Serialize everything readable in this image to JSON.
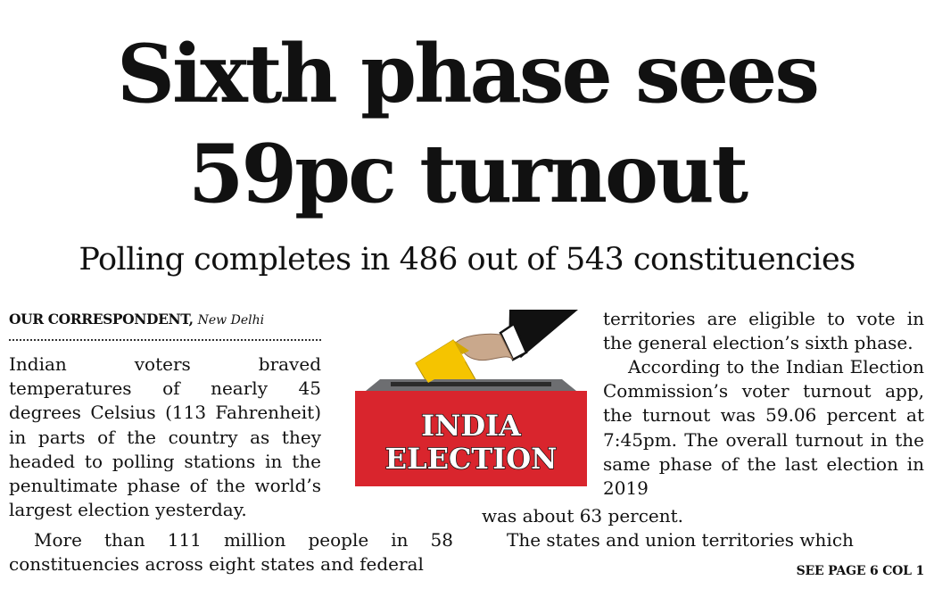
{
  "headline": {
    "line1": "Sixth phase sees",
    "line2": "59pc turnout"
  },
  "subheadline": "Polling completes in 486 out of 543 constituencies",
  "byline": {
    "name": "OUR CORRESPONDENT,",
    "location": "New Delhi"
  },
  "illustration": {
    "label_line1": "INDIA",
    "label_line2": "ELECTION"
  },
  "article": {
    "left_para1": "Indian voters braved temperatures of nearly 45 degrees Celsius (113 Fahrenheit) in parts of the country as they headed to polling stations in the penultimate phase of the world’s largest election yesterday.",
    "left_para2": "More than 111 million people in 58 constituencies across eight states and federal",
    "right_para1": "territories are eligible to vote in the general election’s sixth phase.",
    "right_para2a": "According to the Indian Election Commission’s voter turnout app, the turnout was 59.06 percent at 7:45pm. The overall turnout in the same phase of the last election in 2019",
    "right_para2b": "was about 63 percent.",
    "right_para3": "The states and union territories which"
  },
  "continuation": "SEE PAGE 6 COL 1",
  "colors": {
    "box_red": "#d9252d",
    "box_top": "#6d6e71",
    "ballot_yellow": "#f5c400",
    "sleeve": "#111111",
    "skin": "#c9a88c"
  }
}
